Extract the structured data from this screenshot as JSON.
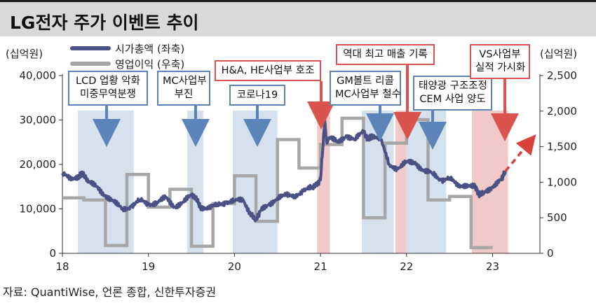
{
  "header": {
    "title": "LG전자 주가 이벤트 추이"
  },
  "units": {
    "left": "(십억원)",
    "right": "(십억원)"
  },
  "legend": [
    {
      "label": "시가총액 (좌축)",
      "color": "#4a5184"
    },
    {
      "label": "영업이익 (우축)",
      "color": "#a6a6a6"
    }
  ],
  "source": "자료: QuantiWise, 언론 종합, 신한투자증권",
  "callouts": [
    {
      "lines": [
        "LCD 업황 악화",
        "미중무역분쟁"
      ],
      "style": "blue"
    },
    {
      "lines": [
        "MC사업부",
        "부진"
      ],
      "style": "blue"
    },
    {
      "lines": [
        "코로나19"
      ],
      "style": "blue"
    },
    {
      "lines": [
        "H&A, HE사업부 호조"
      ],
      "style": "red"
    },
    {
      "lines": [
        "GM볼트 리콜",
        "MC사업부 철수"
      ],
      "style": "blue"
    },
    {
      "lines": [
        "역대 최고 매출 기록"
      ],
      "style": "red"
    },
    {
      "lines": [
        "태양광 구조조정",
        "CEM 사업 양도"
      ],
      "style": "blue"
    },
    {
      "lines": [
        "VS사업부",
        "실적 가시화"
      ],
      "style": "red"
    }
  ],
  "chart_data": {
    "type": "line",
    "title": "LG전자 주가 이벤트 추이",
    "x_ticks": [
      "18",
      "19",
      "20",
      "21",
      "22",
      "23"
    ],
    "x_range": [
      2018.0,
      2023.55
    ],
    "y_left": {
      "label": "(십억원)",
      "range": [
        0,
        40000
      ],
      "ticks": [
        "0",
        "10,000",
        "20,000",
        "30,000",
        "40,000"
      ]
    },
    "y_right": {
      "label": "(십억원)",
      "range": [
        0,
        2500
      ],
      "ticks": [
        "0",
        "500",
        "1,000",
        "1,500",
        "2,000",
        "2,500"
      ]
    },
    "grid": false,
    "shaded_periods": [
      {
        "start": 2018.18,
        "end": 2018.83,
        "color": "blue"
      },
      {
        "start": 2019.45,
        "end": 2019.64,
        "color": "blue"
      },
      {
        "start": 2019.98,
        "end": 2020.5,
        "color": "blue"
      },
      {
        "start": 2020.96,
        "end": 2021.11,
        "color": "red"
      },
      {
        "start": 2021.48,
        "end": 2021.85,
        "color": "blue"
      },
      {
        "start": 2021.87,
        "end": 2022.0,
        "color": "red"
      },
      {
        "start": 2022.0,
        "end": 2022.46,
        "color": "blue"
      },
      {
        "start": 2022.76,
        "end": 2023.18,
        "color": "red"
      }
    ],
    "series": [
      {
        "name": "시가총액 (좌축)",
        "axis": "left",
        "style": "line",
        "x": [
          2018.0,
          2018.1,
          2018.2,
          2018.25,
          2018.3,
          2018.4,
          2018.5,
          2018.6,
          2018.7,
          2018.8,
          2018.9,
          2019.0,
          2019.1,
          2019.2,
          2019.3,
          2019.4,
          2019.5,
          2019.55,
          2019.6,
          2019.7,
          2019.8,
          2019.9,
          2020.0,
          2020.1,
          2020.2,
          2020.25,
          2020.3,
          2020.4,
          2020.5,
          2020.6,
          2020.7,
          2020.8,
          2020.9,
          2020.95,
          2021.0,
          2021.05,
          2021.07,
          2021.1,
          2021.2,
          2021.3,
          2021.4,
          2021.5,
          2021.55,
          2021.6,
          2021.7,
          2021.8,
          2021.9,
          2022.0,
          2022.1,
          2022.2,
          2022.3,
          2022.4,
          2022.5,
          2022.6,
          2022.7,
          2022.8,
          2022.85,
          2022.9,
          2023.0,
          2023.1,
          2023.15
        ],
        "values": [
          18000,
          16500,
          17500,
          17800,
          16000,
          15000,
          13000,
          11500,
          10000,
          10500,
          12000,
          11000,
          11500,
          12500,
          10500,
          11500,
          13000,
          12500,
          10500,
          10000,
          11000,
          11500,
          11800,
          12000,
          8500,
          7500,
          9500,
          11000,
          12500,
          13000,
          13000,
          14000,
          14800,
          15500,
          16500,
          30000,
          25000,
          26000,
          25000,
          26500,
          25500,
          27500,
          25500,
          26500,
          25500,
          20000,
          19000,
          20500,
          20500,
          18500,
          18000,
          16500,
          17000,
          15000,
          15500,
          15000,
          13000,
          13800,
          15000,
          16500,
          18500
        ]
      },
      {
        "name": "영업이익 (우축)",
        "axis": "right",
        "style": "step",
        "x": [
          2018.0,
          2018.25,
          2018.5,
          2018.75,
          2019.0,
          2019.25,
          2019.5,
          2019.75,
          2020.0,
          2020.25,
          2020.5,
          2020.75,
          2021.0,
          2021.25,
          2021.5,
          2021.75,
          2022.0,
          2022.25,
          2022.5,
          2022.75,
          2023.0
        ],
        "values": [
          780,
          750,
          110,
          1110,
          650,
          900,
          100,
          700,
          1090,
          450,
          1600,
          1200,
          1530,
          1900,
          500,
          1550,
          1880,
          750,
          800,
          80,
          80
        ],
        "end_x": 2023.0
      },
      {
        "name": "VS사업부 실적 가시화",
        "axis": "left",
        "style": "dashed-arrow",
        "x": [
          2023.15,
          2023.45
        ],
        "values": [
          18500,
          25500
        ]
      }
    ]
  }
}
